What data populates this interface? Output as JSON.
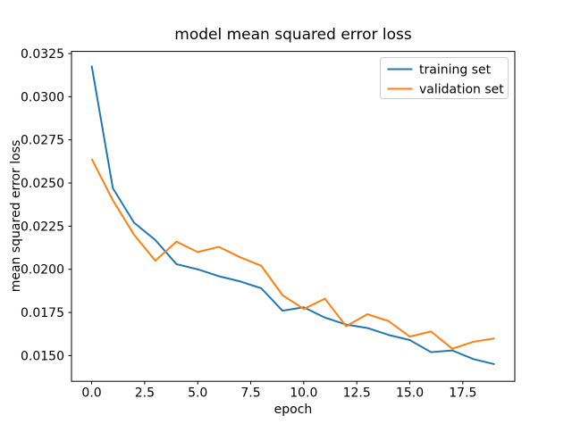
{
  "chart_data": {
    "type": "line",
    "title": "model mean squared error loss",
    "xlabel": "epoch",
    "ylabel": "mean squared error loss",
    "x": [
      0,
      1,
      2,
      3,
      4,
      5,
      6,
      7,
      8,
      9,
      10,
      11,
      12,
      13,
      14,
      15,
      16,
      17,
      18,
      19
    ],
    "series": [
      {
        "name": "training set",
        "color": "#1f77b4",
        "values": [
          0.0318,
          0.0247,
          0.0227,
          0.0217,
          0.0203,
          0.02,
          0.0196,
          0.0193,
          0.0189,
          0.0176,
          0.0178,
          0.0172,
          0.0168,
          0.0166,
          0.0162,
          0.0159,
          0.0152,
          0.0153,
          0.0148,
          0.0145
        ]
      },
      {
        "name": "validation set",
        "color": "#ff7f0e",
        "values": [
          0.0264,
          0.024,
          0.022,
          0.0205,
          0.0216,
          0.021,
          0.0213,
          0.0207,
          0.0202,
          0.0185,
          0.0177,
          0.0183,
          0.0167,
          0.0174,
          0.017,
          0.0161,
          0.0164,
          0.0154,
          0.0158,
          0.016
        ]
      }
    ],
    "xlim": [
      -0.95,
      19.95
    ],
    "ylim": [
      0.013512,
      0.032624
    ],
    "xticks": {
      "values": [
        0,
        2.5,
        5,
        7.5,
        10,
        12.5,
        15,
        17.5
      ],
      "labels": [
        "0.0",
        "2.5",
        "5.0",
        "7.5",
        "10.0",
        "12.5",
        "15.0",
        "17.5"
      ]
    },
    "yticks": {
      "values": [
        0.015,
        0.0175,
        0.02,
        0.0225,
        0.025,
        0.0275,
        0.03,
        0.0325
      ],
      "labels": [
        "0.0150",
        "0.0175",
        "0.0200",
        "0.0225",
        "0.0250",
        "0.0275",
        "0.0300",
        "0.0325"
      ]
    },
    "grid": false,
    "legend": {
      "position": "upper right"
    },
    "colors": {
      "background": "#ffffff",
      "spine": "#000000",
      "legend_border": "#cccccc"
    }
  }
}
